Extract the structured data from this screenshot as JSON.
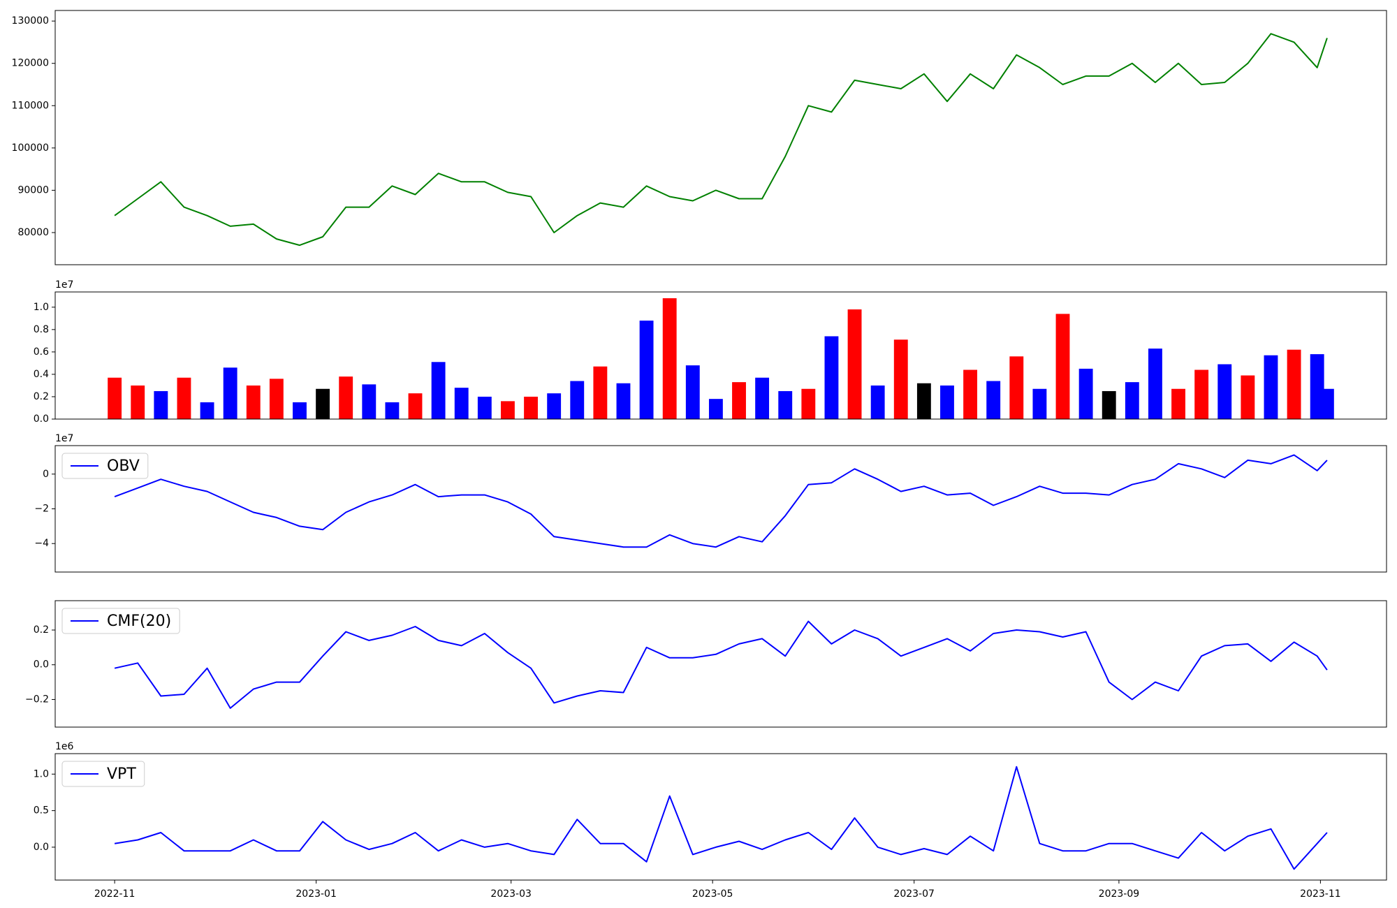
{
  "chart_data": [
    {
      "type": "line",
      "xlim": [
        "2022-10-14",
        "2023-11-21"
      ],
      "ylim": [
        72400,
        132500
      ],
      "yticks": [
        80000,
        90000,
        100000,
        110000,
        120000,
        130000
      ],
      "x": [
        "2022-11-01",
        "2022-11-08",
        "2022-11-15",
        "2022-11-22",
        "2022-11-29",
        "2022-12-06",
        "2022-12-13",
        "2022-12-20",
        "2022-12-27",
        "2023-01-03",
        "2023-01-10",
        "2023-01-17",
        "2023-01-24",
        "2023-01-31",
        "2023-02-07",
        "2023-02-14",
        "2023-02-21",
        "2023-02-28",
        "2023-03-07",
        "2023-03-14",
        "2023-03-21",
        "2023-03-28",
        "2023-04-04",
        "2023-04-11",
        "2023-04-18",
        "2023-04-25",
        "2023-05-02",
        "2023-05-09",
        "2023-05-16",
        "2023-05-23",
        "2023-05-30",
        "2023-06-06",
        "2023-06-13",
        "2023-06-20",
        "2023-06-27",
        "2023-07-04",
        "2023-07-11",
        "2023-07-18",
        "2023-07-25",
        "2023-08-01",
        "2023-08-08",
        "2023-08-15",
        "2023-08-22",
        "2023-08-29",
        "2023-09-05",
        "2023-09-12",
        "2023-09-19",
        "2023-09-26",
        "2023-10-03",
        "2023-10-10",
        "2023-10-17",
        "2023-10-24",
        "2023-10-31",
        "2023-11-03"
      ],
      "series": [
        {
          "color": "green",
          "values": [
            84000,
            88000,
            92000,
            86000,
            84000,
            81500,
            82000,
            78500,
            77000,
            79000,
            86000,
            86000,
            91000,
            89000,
            94000,
            92000,
            92000,
            89500,
            88500,
            80000,
            84000,
            87000,
            86000,
            91000,
            88500,
            87500,
            90000,
            88000,
            88000,
            98000,
            110000,
            108500,
            116000,
            115000,
            114000,
            117500,
            111000,
            117500,
            114000,
            122000,
            119000,
            115000,
            117000,
            117000,
            120000,
            115500,
            120000,
            115000,
            115500,
            120000,
            127000,
            125000,
            119000,
            126000
          ]
        }
      ]
    },
    {
      "type": "bar",
      "offset_label": "1e7",
      "xlim": [
        "2022-10-14",
        "2023-11-21"
      ],
      "ylim": [
        0,
        1.136
      ],
      "yticks": [
        {
          "value": 0,
          "label": "0.0"
        },
        0.2,
        0.4,
        0.6,
        0.8,
        {
          "value": 1,
          "label": "1.0"
        }
      ],
      "x": [
        "2022-11-01",
        "2022-11-08",
        "2022-11-15",
        "2022-11-22",
        "2022-11-29",
        "2022-12-06",
        "2022-12-13",
        "2022-12-20",
        "2022-12-27",
        "2023-01-03",
        "2023-01-10",
        "2023-01-17",
        "2023-01-24",
        "2023-01-31",
        "2023-02-07",
        "2023-02-14",
        "2023-02-21",
        "2023-02-28",
        "2023-03-07",
        "2023-03-14",
        "2023-03-21",
        "2023-03-28",
        "2023-04-04",
        "2023-04-11",
        "2023-04-18",
        "2023-04-25",
        "2023-05-02",
        "2023-05-09",
        "2023-05-16",
        "2023-05-23",
        "2023-05-30",
        "2023-06-06",
        "2023-06-13",
        "2023-06-20",
        "2023-06-27",
        "2023-07-04",
        "2023-07-11",
        "2023-07-18",
        "2023-07-25",
        "2023-08-01",
        "2023-08-08",
        "2023-08-15",
        "2023-08-22",
        "2023-08-29",
        "2023-09-05",
        "2023-09-12",
        "2023-09-19",
        "2023-09-26",
        "2023-10-03",
        "2023-10-10",
        "2023-10-17",
        "2023-10-24",
        "2023-10-31",
        "2023-11-03"
      ],
      "series": [
        {
          "values": [
            0.37,
            0.3,
            0.25,
            0.37,
            0.15,
            0.46,
            0.3,
            0.36,
            0.15,
            0.27,
            0.38,
            0.31,
            0.15,
            0.23,
            0.51,
            0.28,
            0.2,
            0.16,
            0.2,
            0.23,
            0.34,
            0.47,
            0.32,
            0.88,
            1.08,
            0.48,
            0.18,
            0.33,
            0.37,
            0.25,
            0.27,
            0.74,
            0.98,
            0.3,
            0.71,
            0.32,
            0.3,
            0.44,
            0.34,
            0.56,
            0.27,
            0.94,
            0.45,
            0.25,
            0.33,
            0.63,
            0.27,
            0.44,
            0.49,
            0.39,
            0.57,
            0.62,
            0.58,
            0.27
          ],
          "colors": [
            "red",
            "red",
            "blue",
            "red",
            "blue",
            "blue",
            "red",
            "red",
            "blue",
            "black",
            "red",
            "blue",
            "blue",
            "red",
            "blue",
            "blue",
            "blue",
            "red",
            "red",
            "blue",
            "blue",
            "red",
            "blue",
            "blue",
            "red",
            "blue",
            "blue",
            "red",
            "blue",
            "blue",
            "red",
            "blue",
            "red",
            "blue",
            "red",
            "black",
            "blue",
            "red",
            "blue",
            "red",
            "blue",
            "red",
            "blue",
            "black",
            "blue",
            "blue",
            "red",
            "red",
            "blue",
            "red",
            "blue",
            "red",
            "blue",
            "blue"
          ]
        }
      ]
    },
    {
      "type": "line",
      "offset_label": "1e7",
      "xlim": [
        "2022-10-14",
        "2023-11-21"
      ],
      "ylim": [
        -5.64,
        1.64
      ],
      "yticks": [
        {
          "value": -4,
          "label": "−4"
        },
        {
          "value": -2,
          "label": "−2"
        },
        0
      ],
      "x": [
        "2022-11-01",
        "2022-11-08",
        "2022-11-15",
        "2022-11-22",
        "2022-11-29",
        "2022-12-06",
        "2022-12-13",
        "2022-12-20",
        "2022-12-27",
        "2023-01-03",
        "2023-01-10",
        "2023-01-17",
        "2023-01-24",
        "2023-01-31",
        "2023-02-07",
        "2023-02-14",
        "2023-02-21",
        "2023-02-28",
        "2023-03-07",
        "2023-03-14",
        "2023-03-21",
        "2023-03-28",
        "2023-04-04",
        "2023-04-11",
        "2023-04-18",
        "2023-04-25",
        "2023-05-02",
        "2023-05-09",
        "2023-05-16",
        "2023-05-23",
        "2023-05-30",
        "2023-06-06",
        "2023-06-13",
        "2023-06-20",
        "2023-06-27",
        "2023-07-04",
        "2023-07-11",
        "2023-07-18",
        "2023-07-25",
        "2023-08-01",
        "2023-08-08",
        "2023-08-15",
        "2023-08-22",
        "2023-08-29",
        "2023-09-05",
        "2023-09-12",
        "2023-09-19",
        "2023-09-26",
        "2023-10-03",
        "2023-10-10",
        "2023-10-17",
        "2023-10-24",
        "2023-10-31",
        "2023-11-03"
      ],
      "series": [
        {
          "name": "OBV",
          "color": "blue",
          "values": [
            -1.3,
            -0.8,
            -0.3,
            -0.7,
            -1.0,
            -1.6,
            -2.2,
            -2.5,
            -3.0,
            -3.2,
            -2.2,
            -1.6,
            -1.2,
            -0.6,
            -1.3,
            -1.2,
            -1.2,
            -1.6,
            -2.3,
            -3.6,
            -3.8,
            -4.0,
            -4.2,
            -4.2,
            -3.5,
            -4.0,
            -4.2,
            -3.6,
            -3.9,
            -2.4,
            -0.6,
            -0.5,
            0.3,
            -0.3,
            -1.0,
            -0.7,
            -1.2,
            -1.1,
            -1.8,
            -1.3,
            -0.7,
            -1.1,
            -1.1,
            -1.2,
            -0.6,
            -0.3,
            0.6,
            0.3,
            -0.2,
            0.8,
            0.6,
            1.1,
            0.2,
            0.8
          ]
        }
      ]
    },
    {
      "type": "line",
      "xlim": [
        "2022-10-14",
        "2023-11-21"
      ],
      "ylim": [
        -0.359,
        0.369
      ],
      "yticks": [
        {
          "value": -0.2,
          "label": "−0.2"
        },
        {
          "value": 0,
          "label": "0.0"
        },
        0.2
      ],
      "x": [
        "2022-11-01",
        "2022-11-08",
        "2022-11-15",
        "2022-11-22",
        "2022-11-29",
        "2022-12-06",
        "2022-12-13",
        "2022-12-20",
        "2022-12-27",
        "2023-01-03",
        "2023-01-10",
        "2023-01-17",
        "2023-01-24",
        "2023-01-31",
        "2023-02-07",
        "2023-02-14",
        "2023-02-21",
        "2023-02-28",
        "2023-03-07",
        "2023-03-14",
        "2023-03-21",
        "2023-03-28",
        "2023-04-04",
        "2023-04-11",
        "2023-04-18",
        "2023-04-25",
        "2023-05-02",
        "2023-05-09",
        "2023-05-16",
        "2023-05-23",
        "2023-05-30",
        "2023-06-06",
        "2023-06-13",
        "2023-06-20",
        "2023-06-27",
        "2023-07-04",
        "2023-07-11",
        "2023-07-18",
        "2023-07-25",
        "2023-08-01",
        "2023-08-08",
        "2023-08-15",
        "2023-08-22",
        "2023-08-29",
        "2023-09-05",
        "2023-09-12",
        "2023-09-19",
        "2023-09-26",
        "2023-10-03",
        "2023-10-10",
        "2023-10-17",
        "2023-10-24",
        "2023-10-31",
        "2023-11-03"
      ],
      "series": [
        {
          "name": "CMF(20)",
          "color": "blue",
          "values": [
            -0.02,
            0.01,
            -0.18,
            -0.17,
            -0.02,
            -0.25,
            -0.14,
            -0.1,
            -0.1,
            0.05,
            0.19,
            0.14,
            0.17,
            0.22,
            0.14,
            0.11,
            0.18,
            0.07,
            -0.02,
            -0.22,
            -0.18,
            -0.15,
            -0.16,
            0.1,
            0.04,
            0.04,
            0.06,
            0.12,
            0.15,
            0.05,
            0.25,
            0.12,
            0.2,
            0.15,
            0.05,
            0.1,
            0.15,
            0.08,
            0.18,
            0.2,
            0.19,
            0.16,
            0.19,
            -0.1,
            -0.2,
            -0.1,
            -0.15,
            0.05,
            0.11,
            0.12,
            0.02,
            0.13,
            0.05,
            -0.03
          ]
        }
      ]
    },
    {
      "type": "line",
      "offset_label": "1e6",
      "xlim": [
        "2022-10-14",
        "2023-11-21"
      ],
      "ylim": [
        -0.45,
        1.28
      ],
      "yticks": [
        {
          "value": 0,
          "label": "0.0"
        },
        0.5,
        {
          "value": 1,
          "label": "1.0"
        }
      ],
      "xticks": [
        {
          "value": "2022-11-01",
          "label": "2022-11"
        },
        {
          "value": "2023-01-01",
          "label": "2023-01"
        },
        {
          "value": "2023-03-01",
          "label": "2023-03"
        },
        {
          "value": "2023-05-01",
          "label": "2023-05"
        },
        {
          "value": "2023-07-01",
          "label": "2023-07"
        },
        {
          "value": "2023-09-01",
          "label": "2023-09"
        },
        {
          "value": "2023-11-01",
          "label": "2023-11"
        }
      ],
      "x": [
        "2022-11-01",
        "2022-11-08",
        "2022-11-15",
        "2022-11-22",
        "2022-11-29",
        "2022-12-06",
        "2022-12-13",
        "2022-12-20",
        "2022-12-27",
        "2023-01-03",
        "2023-01-10",
        "2023-01-17",
        "2023-01-24",
        "2023-01-31",
        "2023-02-07",
        "2023-02-14",
        "2023-02-21",
        "2023-02-28",
        "2023-03-07",
        "2023-03-14",
        "2023-03-21",
        "2023-03-28",
        "2023-04-04",
        "2023-04-11",
        "2023-04-18",
        "2023-04-25",
        "2023-05-02",
        "2023-05-09",
        "2023-05-16",
        "2023-05-23",
        "2023-05-30",
        "2023-06-06",
        "2023-06-13",
        "2023-06-20",
        "2023-06-27",
        "2023-07-04",
        "2023-07-11",
        "2023-07-18",
        "2023-07-25",
        "2023-08-01",
        "2023-08-08",
        "2023-08-15",
        "2023-08-22",
        "2023-08-29",
        "2023-09-05",
        "2023-09-12",
        "2023-09-19",
        "2023-09-26",
        "2023-10-03",
        "2023-10-10",
        "2023-10-17",
        "2023-10-24",
        "2023-10-31",
        "2023-11-03"
      ],
      "series": [
        {
          "name": "VPT",
          "color": "blue",
          "values": [
            0.05,
            0.1,
            0.2,
            -0.05,
            -0.05,
            -0.05,
            0.1,
            -0.05,
            -0.05,
            0.35,
            0.1,
            -0.03,
            0.05,
            0.2,
            -0.05,
            0.1,
            0.0,
            0.05,
            -0.05,
            -0.1,
            0.38,
            0.05,
            0.05,
            -0.2,
            0.7,
            -0.1,
            0.0,
            0.08,
            -0.03,
            0.1,
            0.2,
            -0.03,
            0.4,
            0.0,
            -0.1,
            -0.02,
            -0.1,
            0.15,
            -0.05,
            1.1,
            0.05,
            -0.05,
            -0.05,
            0.05,
            0.05,
            -0.05,
            -0.15,
            0.2,
            -0.05,
            0.15,
            0.25,
            -0.3,
            0.05,
            0.2
          ]
        }
      ]
    }
  ]
}
